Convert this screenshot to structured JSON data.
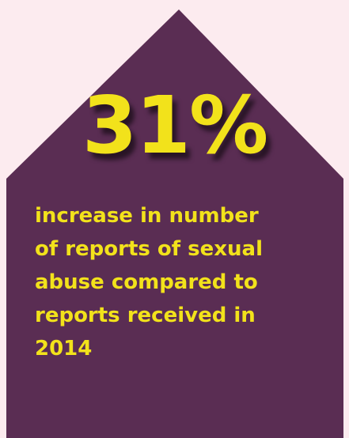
{
  "infographic": {
    "headline_value": "31%",
    "caption_lines": [
      "increase in number",
      "of reports of sexual",
      "abuse compared to",
      "reports received in",
      "2014"
    ]
  },
  "colors": {
    "background": "#fcebef",
    "house_fill": "#5a2d53",
    "accent_text": "#f2e21b"
  }
}
